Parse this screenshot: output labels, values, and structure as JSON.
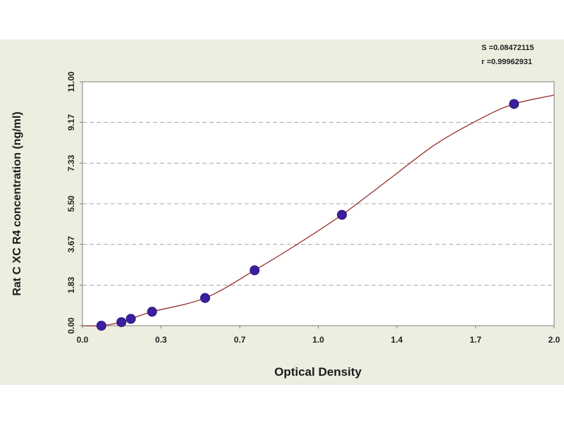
{
  "chart_data": {
    "type": "scatter",
    "title": "",
    "xlabel": "Optical Density",
    "ylabel": "Rat C XC R4 concentration (ng/ml)",
    "xlim": [
      0.0,
      2.0
    ],
    "ylim": [
      0.0,
      11.0
    ],
    "x_ticks": [
      "0.0",
      "0.3",
      "0.7",
      "1.0",
      "1.4",
      "1.7",
      "2.0"
    ],
    "x_tick_values": [
      0.0,
      0.333,
      0.667,
      1.0,
      1.333,
      1.667,
      2.0
    ],
    "y_ticks": [
      "0.00",
      "1.83",
      "3.67",
      "5.50",
      "7.33",
      "9.17",
      "11.00"
    ],
    "y_tick_values": [
      0.0,
      1.83,
      3.67,
      5.5,
      7.33,
      9.17,
      11.0
    ],
    "grid": "horizontal-dashed",
    "points": [
      {
        "x": 0.08,
        "y": 0.0
      },
      {
        "x": 0.165,
        "y": 0.16
      },
      {
        "x": 0.205,
        "y": 0.31
      },
      {
        "x": 0.295,
        "y": 0.63
      },
      {
        "x": 0.52,
        "y": 1.25
      },
      {
        "x": 0.73,
        "y": 2.5
      },
      {
        "x": 1.1,
        "y": 5.0
      },
      {
        "x": 1.83,
        "y": 10.0
      }
    ],
    "curve": [
      {
        "x": 0.0,
        "y": -0.2
      },
      {
        "x": 0.08,
        "y": 0.0
      },
      {
        "x": 0.165,
        "y": 0.16
      },
      {
        "x": 0.205,
        "y": 0.31
      },
      {
        "x": 0.295,
        "y": 0.63
      },
      {
        "x": 0.52,
        "y": 1.25
      },
      {
        "x": 0.73,
        "y": 2.5
      },
      {
        "x": 0.9,
        "y": 3.6
      },
      {
        "x": 1.1,
        "y": 5.0
      },
      {
        "x": 1.3,
        "y": 6.6
      },
      {
        "x": 1.5,
        "y": 8.2
      },
      {
        "x": 1.7,
        "y": 9.4
      },
      {
        "x": 1.83,
        "y": 10.0
      },
      {
        "x": 2.0,
        "y": 10.4
      }
    ],
    "stats": [
      "S =0.08472115",
      "r =0.99962931"
    ],
    "colors": {
      "background": "#edeee0",
      "plot_area": "#ffffff",
      "point": "#3c1fa0",
      "curve": "#9a2a2a",
      "grid": "#a8a8a8"
    }
  }
}
